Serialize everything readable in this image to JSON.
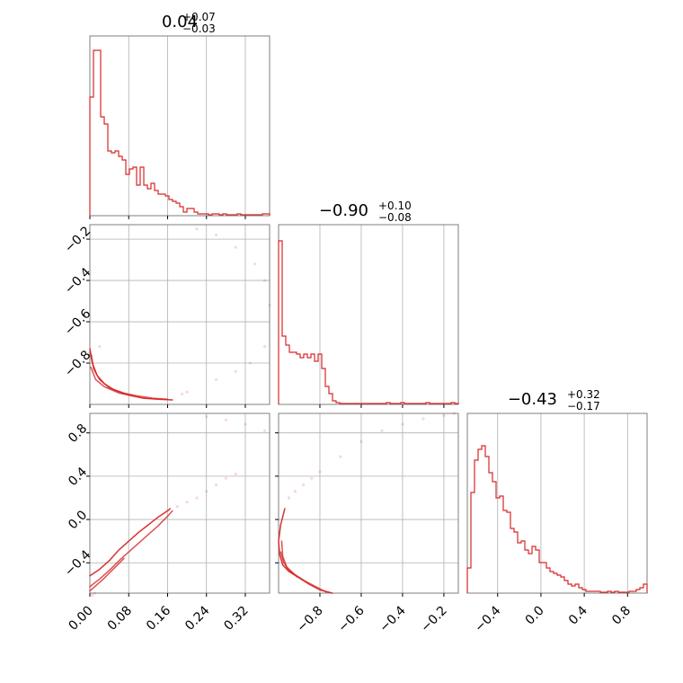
{
  "chart_data": {
    "type": "corner",
    "color": "#d62728",
    "grid": true,
    "parameters": [
      {
        "title": {
          "median": "0.04",
          "plus": "+0.07",
          "minus": "−0.03"
        },
        "range": [
          0.0,
          0.37
        ],
        "ticks": [
          0.0,
          0.08,
          0.16,
          0.24,
          0.32
        ],
        "tick_labels": [
          "0.00",
          "0.08",
          "0.16",
          "0.24",
          "0.32"
        ]
      },
      {
        "title": {
          "median": "−0.90",
          "plus": "+0.10",
          "minus": "−0.08"
        },
        "range": [
          -1.0,
          -0.13
        ],
        "ticks": [
          -0.8,
          -0.6,
          -0.4,
          -0.2
        ],
        "tick_labels": [
          "−0.8",
          "−0.6",
          "−0.4",
          "−0.2"
        ]
      },
      {
        "title": {
          "median": "−0.43",
          "plus": "+0.32",
          "minus": "−0.17"
        },
        "range": [
          -0.68,
          0.98
        ],
        "ticks": [
          -0.4,
          0.0,
          0.4,
          0.8
        ],
        "tick_labels": [
          "−0.4",
          "0.0",
          "0.4",
          "0.8"
        ]
      }
    ],
    "histograms": [
      {
        "bins": 50,
        "values": [
          0.66,
          0.92,
          0.92,
          0.55,
          0.51,
          0.36,
          0.35,
          0.36,
          0.33,
          0.31,
          0.23,
          0.26,
          0.27,
          0.17,
          0.27,
          0.17,
          0.15,
          0.18,
          0.14,
          0.12,
          0.12,
          0.11,
          0.09,
          0.08,
          0.07,
          0.05,
          0.02,
          0.04,
          0.04,
          0.02,
          0.01,
          0.01,
          0.01,
          0.005,
          0.01,
          0.01,
          0.005,
          0.01,
          0.005,
          0.005,
          0.005,
          0.01,
          0.005,
          0.005,
          0.005,
          0.005,
          0.005,
          0.005,
          0.01,
          0.01
        ]
      },
      {
        "bins": 50,
        "values": [
          0.91,
          0.38,
          0.33,
          0.29,
          0.29,
          0.28,
          0.26,
          0.28,
          0.26,
          0.28,
          0.24,
          0.28,
          0.2,
          0.1,
          0.06,
          0.02,
          0.01,
          0.005,
          0.005,
          0.005,
          0.005,
          0.005,
          0.005,
          0.005,
          0.005,
          0.005,
          0.005,
          0.005,
          0.005,
          0.005,
          0.01,
          0.005,
          0.005,
          0.005,
          0.01,
          0.005,
          0.005,
          0.005,
          0.005,
          0.005,
          0.005,
          0.01,
          0.005,
          0.005,
          0.005,
          0.005,
          0.005,
          0.005,
          0.01,
          0.005
        ]
      },
      {
        "bins": 50,
        "values": [
          0.14,
          0.56,
          0.74,
          0.8,
          0.82,
          0.76,
          0.67,
          0.62,
          0.53,
          0.54,
          0.46,
          0.45,
          0.36,
          0.34,
          0.28,
          0.29,
          0.24,
          0.22,
          0.26,
          0.24,
          0.17,
          0.17,
          0.14,
          0.12,
          0.11,
          0.1,
          0.09,
          0.07,
          0.05,
          0.04,
          0.05,
          0.03,
          0.02,
          0.01,
          0.01,
          0.01,
          0.01,
          0.005,
          0.005,
          0.01,
          0.005,
          0.01,
          0.005,
          0.005,
          0.005,
          0.01,
          0.01,
          0.02,
          0.03,
          0.05
        ]
      }
    ],
    "panels_2d": [
      {
        "x_param": 0,
        "y_param": 1,
        "contours": [
          [
            [
              0.0,
              -0.73
            ],
            [
              0.005,
              -0.8
            ],
            [
              0.015,
              -0.86
            ],
            [
              0.03,
              -0.9
            ],
            [
              0.05,
              -0.93
            ],
            [
              0.08,
              -0.955
            ],
            [
              0.11,
              -0.97
            ],
            [
              0.14,
              -0.975
            ],
            [
              0.17,
              -0.978
            ]
          ],
          [
            [
              0.003,
              -0.76
            ],
            [
              0.008,
              -0.83
            ],
            [
              0.02,
              -0.88
            ],
            [
              0.04,
              -0.92
            ],
            [
              0.07,
              -0.945
            ],
            [
              0.1,
              -0.96
            ],
            [
              0.13,
              -0.97
            ],
            [
              0.16,
              -0.975
            ]
          ],
          [
            [
              0.002,
              -0.82
            ],
            [
              0.012,
              -0.88
            ],
            [
              0.03,
              -0.915
            ],
            [
              0.06,
              -0.945
            ],
            [
              0.09,
              -0.96
            ]
          ]
        ],
        "samples": [
          [
            0.22,
            -0.15
          ],
          [
            0.26,
            -0.18
          ],
          [
            0.3,
            -0.24
          ],
          [
            0.34,
            -0.32
          ],
          [
            0.36,
            -0.4
          ],
          [
            0.37,
            -0.52
          ],
          [
            0.36,
            -0.72
          ],
          [
            0.33,
            -0.8
          ],
          [
            0.3,
            -0.84
          ],
          [
            0.26,
            -0.88
          ],
          [
            0.2,
            -0.94
          ],
          [
            0.19,
            -0.95
          ],
          [
            0.02,
            -0.72
          ],
          [
            0.0,
            -0.75
          ]
        ]
      },
      {
        "x_param": 0,
        "y_param": 2,
        "contours": [
          [
            [
              0.0,
              -0.52
            ],
            [
              0.02,
              -0.46
            ],
            [
              0.04,
              -0.38
            ],
            [
              0.06,
              -0.28
            ],
            [
              0.08,
              -0.2
            ],
            [
              0.1,
              -0.12
            ],
            [
              0.12,
              -0.05
            ],
            [
              0.14,
              0.02
            ],
            [
              0.16,
              0.08
            ],
            [
              0.165,
              0.1
            ]
          ],
          [
            [
              0.0,
              -0.62
            ],
            [
              0.02,
              -0.55
            ],
            [
              0.04,
              -0.47
            ],
            [
              0.06,
              -0.38
            ],
            [
              0.08,
              -0.3
            ],
            [
              0.1,
              -0.22
            ],
            [
              0.12,
              -0.14
            ],
            [
              0.14,
              -0.06
            ],
            [
              0.16,
              0.03
            ],
            [
              0.17,
              0.08
            ]
          ],
          [
            [
              0.0,
              -0.66
            ],
            [
              0.01,
              -0.62
            ],
            [
              0.03,
              -0.54
            ],
            [
              0.05,
              -0.45
            ],
            [
              0.07,
              -0.36
            ]
          ]
        ],
        "samples": [
          [
            0.18,
            0.12
          ],
          [
            0.2,
            0.16
          ],
          [
            0.22,
            0.2
          ],
          [
            0.24,
            0.26
          ],
          [
            0.26,
            0.32
          ],
          [
            0.28,
            0.38
          ],
          [
            0.3,
            0.42
          ],
          [
            0.24,
            0.95
          ],
          [
            0.28,
            0.92
          ],
          [
            0.32,
            0.88
          ],
          [
            0.36,
            0.82
          ],
          [
            0.01,
            -0.68
          ],
          [
            0.005,
            -0.7
          ]
        ]
      },
      {
        "x_param": 1,
        "y_param": 2,
        "contours": [
          [
            [
              -0.97,
              0.1
            ],
            [
              -0.99,
              -0.05
            ],
            [
              -1.0,
              -0.2
            ],
            [
              -0.995,
              -0.32
            ],
            [
              -0.98,
              -0.42
            ],
            [
              -0.95,
              -0.48
            ],
            [
              -0.9,
              -0.54
            ],
            [
              -0.85,
              -0.6
            ],
            [
              -0.8,
              -0.65
            ],
            [
              -0.74,
              -0.68
            ]
          ],
          [
            [
              -0.985,
              -0.2
            ],
            [
              -0.98,
              -0.34
            ],
            [
              -0.96,
              -0.44
            ],
            [
              -0.92,
              -0.51
            ],
            [
              -0.87,
              -0.57
            ],
            [
              -0.82,
              -0.62
            ],
            [
              -0.77,
              -0.67
            ]
          ],
          [
            [
              -0.99,
              -0.3
            ],
            [
              -0.975,
              -0.4
            ],
            [
              -0.95,
              -0.47
            ],
            [
              -0.91,
              -0.53
            ]
          ]
        ],
        "samples": [
          [
            -0.95,
            0.2
          ],
          [
            -0.92,
            0.26
          ],
          [
            -0.88,
            0.32
          ],
          [
            -0.84,
            0.38
          ],
          [
            -0.8,
            0.44
          ],
          [
            -0.7,
            0.58
          ],
          [
            -0.6,
            0.72
          ],
          [
            -0.5,
            0.82
          ],
          [
            -0.4,
            0.88
          ],
          [
            -0.3,
            0.93
          ],
          [
            -0.2,
            0.96
          ],
          [
            -0.15,
            0.98
          ]
        ]
      }
    ]
  }
}
